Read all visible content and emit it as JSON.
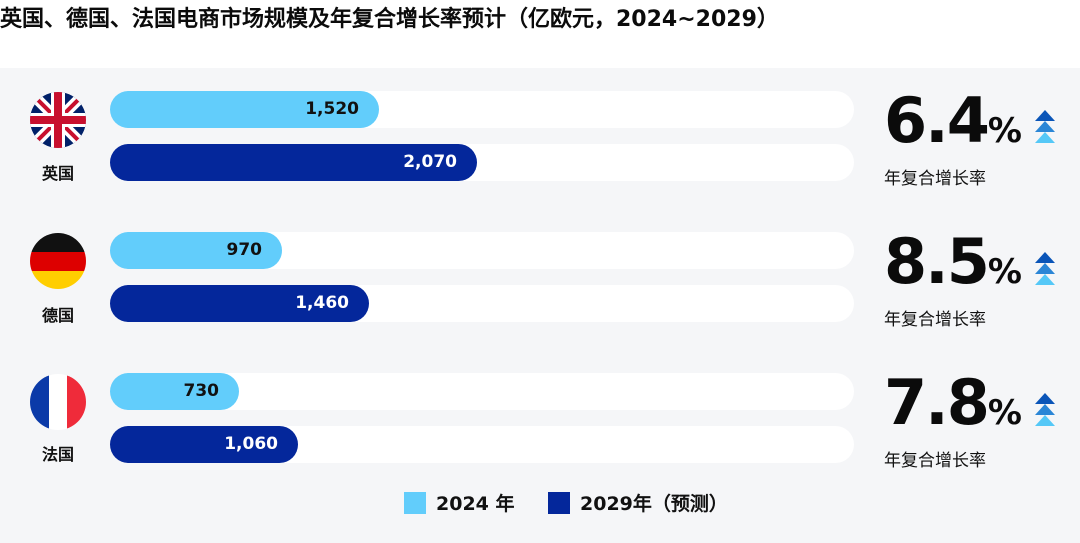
{
  "title": "英国、德国、法国电商市场规模及年复合增长率预计（亿欧元，2024~2029）",
  "colors": {
    "series_2024": "#62cdfb",
    "series_2029": "#04279b",
    "panel_bg": "#f5f6f8",
    "arrow_dark": "#0a55b8",
    "arrow_light": "#55c8f7"
  },
  "legend": [
    {
      "label": "2024 年",
      "color": "#62cdfb"
    },
    {
      "label": "2029年（预测）",
      "color": "#04279b"
    }
  ],
  "countries": [
    {
      "name": "英国",
      "flag": "uk-flag",
      "v2024": "1,520",
      "v2029": "2,070",
      "cagr": "6.4",
      "cagr_unit": "%",
      "cagr_label": "年复合增长率"
    },
    {
      "name": "德国",
      "flag": "germany-flag",
      "v2024": "970",
      "v2029": "1,460",
      "cagr": "8.5",
      "cagr_unit": "%",
      "cagr_label": "年复合增长率"
    },
    {
      "name": "法国",
      "flag": "france-flag",
      "v2024": "730",
      "v2029": "1,060",
      "cagr": "7.8",
      "cagr_unit": "%",
      "cagr_label": "年复合增长率"
    }
  ],
  "chart_data": {
    "type": "bar",
    "orientation": "horizontal",
    "title": "英国、德国、法国电商市场规模及年复合增长率预计（亿欧元，2024~2029）",
    "categories": [
      "英国",
      "德国",
      "法国"
    ],
    "series": [
      {
        "name": "2024 年",
        "values": [
          1520,
          970,
          730
        ]
      },
      {
        "name": "2029年（预测）",
        "values": [
          2070,
          1460,
          1060
        ]
      }
    ],
    "cagr_percent": [
      6.4,
      8.5,
      7.8
    ],
    "xlim": [
      0,
      4200
    ],
    "legend_position": "bottom"
  }
}
